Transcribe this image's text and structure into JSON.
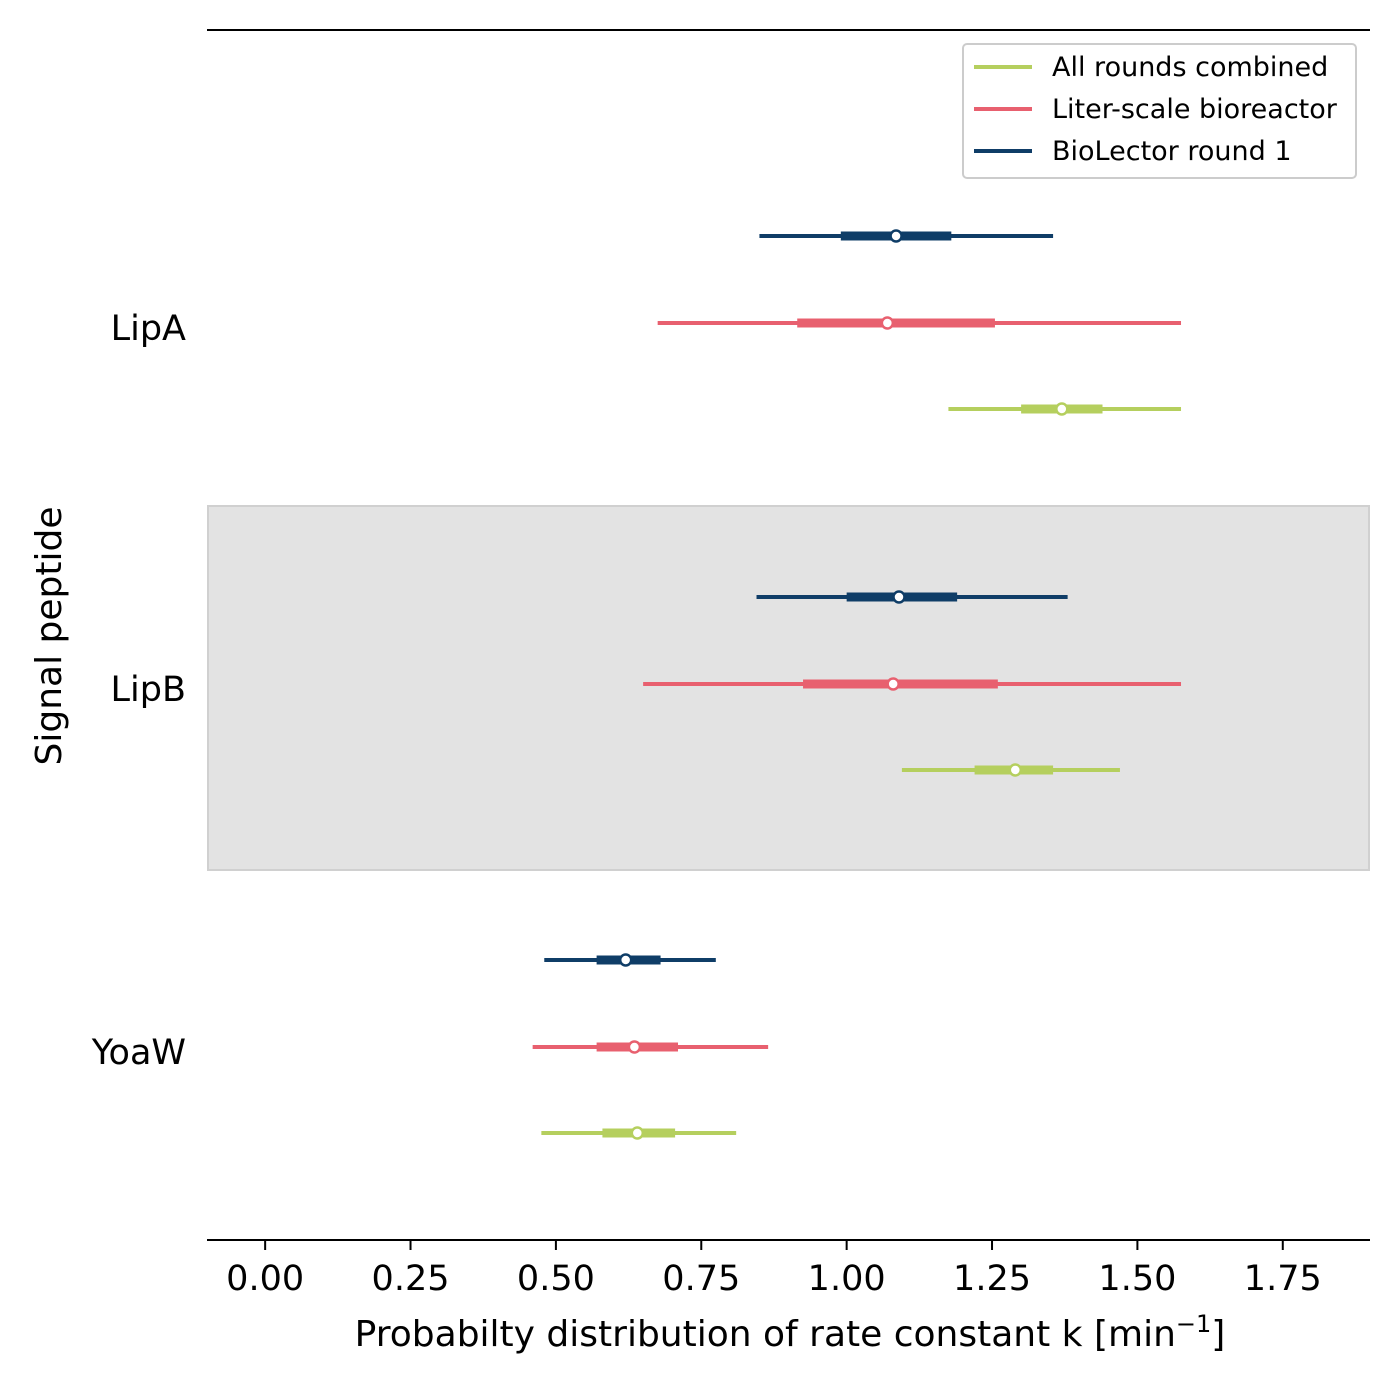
{
  "chart_data": {
    "type": "forest",
    "xlabel": "Probabilty distribution of rate constant k [min",
    "xlabel_superscript": "−1",
    "xlabel_suffix": "]",
    "ylabel": "Signal peptide",
    "xlim": [
      -0.1,
      1.9
    ],
    "x_ticks": [
      0.0,
      0.25,
      0.5,
      0.75,
      1.0,
      1.25,
      1.5,
      1.75
    ],
    "x_tick_labels": [
      "0.00",
      "0.25",
      "0.50",
      "0.75",
      "1.00",
      "1.25",
      "1.50",
      "1.75"
    ],
    "legend_position": "top-right",
    "shaded_groups": [
      "LipB"
    ],
    "colors": {
      "All rounds combined": "#b5cf5e",
      "Liter-scale bioreactor": "#e8606f",
      "BioLector round 1": "#0f3d67",
      "shade": "#e3e3e3",
      "shade_border": "#d0d0d0"
    },
    "legend": [
      "All rounds combined",
      "Liter-scale bioreactor",
      "BioLector round 1"
    ],
    "groups": [
      {
        "name": "LipA",
        "series": [
          {
            "name": "BioLector round 1",
            "low": 0.85,
            "q1": 0.99,
            "median": 1.085,
            "q3": 1.18,
            "high": 1.355
          },
          {
            "name": "Liter-scale bioreactor",
            "low": 0.675,
            "q1": 0.915,
            "median": 1.07,
            "q3": 1.255,
            "high": 1.575
          },
          {
            "name": "All rounds combined",
            "low": 1.175,
            "q1": 1.3,
            "median": 1.37,
            "q3": 1.44,
            "high": 1.575
          }
        ]
      },
      {
        "name": "LipB",
        "series": [
          {
            "name": "BioLector round 1",
            "low": 0.845,
            "q1": 1.0,
            "median": 1.09,
            "q3": 1.19,
            "high": 1.38
          },
          {
            "name": "Liter-scale bioreactor",
            "low": 0.65,
            "q1": 0.925,
            "median": 1.08,
            "q3": 1.26,
            "high": 1.575
          },
          {
            "name": "All rounds combined",
            "low": 1.095,
            "q1": 1.22,
            "median": 1.29,
            "q3": 1.355,
            "high": 1.47
          }
        ]
      },
      {
        "name": "YoaW",
        "series": [
          {
            "name": "BioLector round 1",
            "low": 0.48,
            "q1": 0.57,
            "median": 0.62,
            "q3": 0.68,
            "high": 0.775
          },
          {
            "name": "Liter-scale bioreactor",
            "low": 0.46,
            "q1": 0.57,
            "median": 0.635,
            "q3": 0.71,
            "high": 0.865
          },
          {
            "name": "All rounds combined",
            "low": 0.475,
            "q1": 0.58,
            "median": 0.64,
            "q3": 0.705,
            "high": 0.81
          }
        ]
      }
    ]
  }
}
